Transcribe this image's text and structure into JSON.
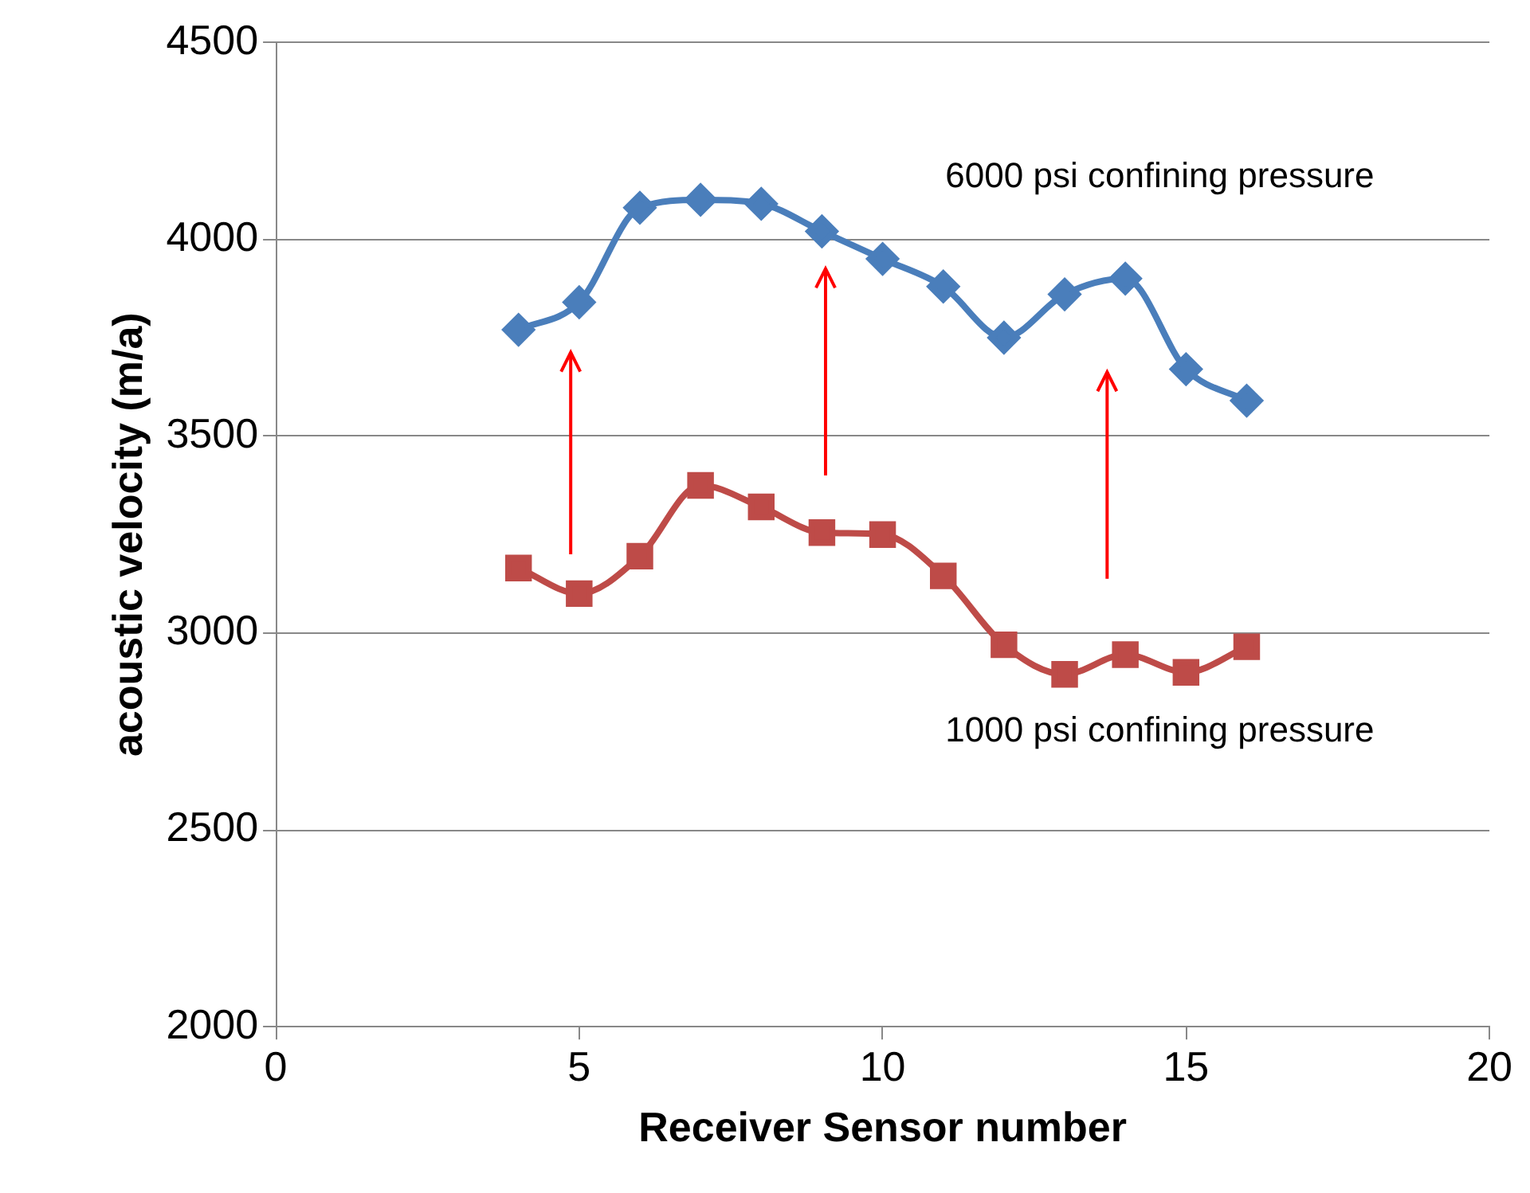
{
  "chart_data": {
    "type": "line",
    "xlabel": "Receiver Sensor number",
    "ylabel": "acoustic velocity (m/a)",
    "xlim": [
      0,
      20
    ],
    "xticks": [
      0,
      5,
      10,
      15,
      20
    ],
    "ylim": [
      2000,
      4500
    ],
    "yticks": [
      2000,
      2500,
      3000,
      3500,
      4000,
      4500
    ],
    "grid": "y",
    "x": [
      4,
      5,
      6,
      7,
      8,
      9,
      10,
      11,
      12,
      13,
      14,
      15,
      16
    ],
    "series": [
      {
        "name": "6000 psi confining pressure",
        "color": "#4a7ebb",
        "marker": "diamond",
        "values": [
          3770,
          3840,
          4080,
          4100,
          4090,
          4020,
          3950,
          3880,
          3750,
          3860,
          3900,
          3670,
          3590
        ]
      },
      {
        "name": "1000 psi confining pressure",
        "color": "#be4b48",
        "marker": "square",
        "values": [
          3165,
          3100,
          3195,
          3375,
          3320,
          3255,
          3250,
          3145,
          2970,
          2895,
          2945,
          2900,
          2965
        ]
      }
    ]
  }
}
